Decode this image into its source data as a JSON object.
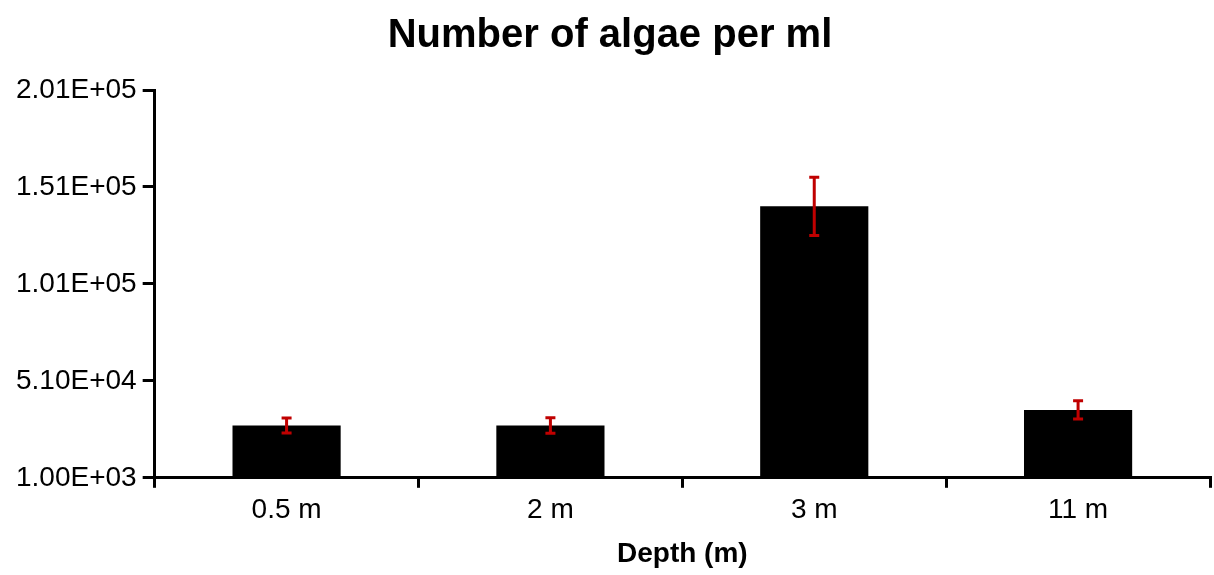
{
  "chart_data": {
    "type": "bar",
    "title": "Number of algae per ml",
    "xlabel": "Depth (m)",
    "categories": [
      "0.5 m",
      "2 m",
      "3 m",
      "11 m"
    ],
    "values": [
      28000,
      28000,
      141000,
      36000
    ],
    "errors": [
      3900,
      4000,
      15000,
      4700
    ],
    "color": "#000000",
    "ylim": [
      1000,
      201000
    ],
    "yticks": [
      {
        "value": 1000,
        "label": "1.00E+03"
      },
      {
        "value": 51000,
        "label": "5.10E+04"
      },
      {
        "value": 101000,
        "label": "1.01E+05"
      },
      {
        "value": 151000,
        "label": "1.51E+05"
      },
      {
        "value": 201000,
        "label": "2.01E+05"
      }
    ],
    "grid": false,
    "legend": false
  }
}
